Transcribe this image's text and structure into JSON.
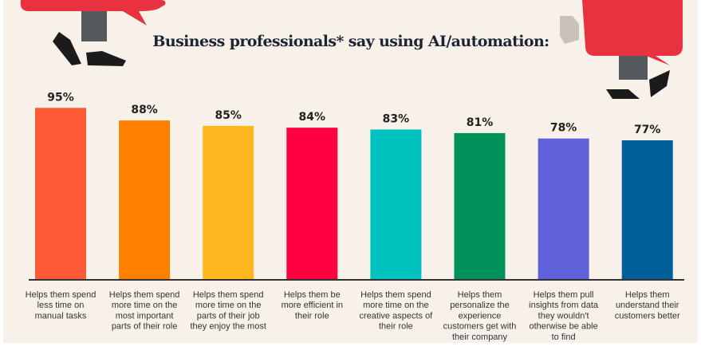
{
  "chart_data": {
    "type": "bar",
    "title": "Business professionals* say using AI/automation:",
    "categories": [
      [
        "Helps them spend",
        "less time on",
        "manual tasks"
      ],
      [
        "Helps them spend",
        "more time on the",
        "most important",
        "parts of their role"
      ],
      [
        "Helps them spend",
        "more time on the",
        "parts of their job",
        "they enjoy the most"
      ],
      [
        "Helps them be",
        "more efficient in",
        "their role"
      ],
      [
        "Helps them spend",
        "more time on the",
        "creative aspects of",
        "their role"
      ],
      [
        "Helps them",
        "personalize the",
        "experience",
        "customers get with",
        "their company"
      ],
      [
        "Helps them pull",
        "insights from data",
        "they wouldn't",
        "otherwise be able",
        "to find"
      ],
      [
        "Helps them",
        "understand their",
        "customers better"
      ]
    ],
    "values": [
      95,
      88,
      85,
      84,
      83,
      81,
      78,
      77
    ],
    "value_labels": [
      "95%",
      "88%",
      "85%",
      "84%",
      "83%",
      "81%",
      "78%",
      "77%"
    ],
    "colors": [
      "#ff5a36",
      "#ff7f00",
      "#ffb81f",
      "#ff0040",
      "#00c3c0",
      "#00925a",
      "#6161db",
      "#005f99"
    ],
    "ylim": [
      0,
      100
    ],
    "grid": false,
    "legend": "none",
    "accent_color": "#e8323f"
  }
}
